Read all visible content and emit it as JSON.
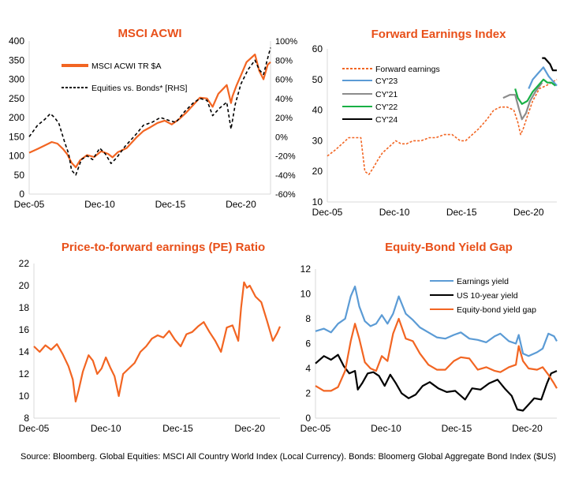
{
  "colors": {
    "title": "#e8501a",
    "orange": "#f26522",
    "blue": "#5b9bd5",
    "grey": "#8c8c8c",
    "green": "#18b045",
    "black": "#000000",
    "axis": "#d9d9d9"
  },
  "source_note": "Source: Bloomberg. Global Equities: MSCI All Country World Index (Local Currency).  Bonds: Bloomerg Global Aggregate Bond Index ($US)",
  "chart_data": [
    {
      "type": "line",
      "title": "MSCI ACWI",
      "xlabel": "",
      "ylabel": "",
      "y2label": "",
      "xlim": [
        2005.9,
        2023.0
      ],
      "ylim": [
        0,
        400
      ],
      "y2lim": [
        -60,
        100
      ],
      "x_tick_values": [
        2005.9,
        2010.9,
        2015.9,
        2020.9
      ],
      "x_tick_labels": [
        "Dec-05",
        "Dec-10",
        "Dec-15",
        "Dec-20"
      ],
      "y_tick_labels": [
        "0",
        "50",
        "100",
        "150",
        "200",
        "250",
        "300",
        "350",
        "400"
      ],
      "y2_tick_labels": [
        "-60%",
        "-40%",
        "-20%",
        "0%",
        "20%",
        "40%",
        "60%",
        "80%",
        "100%"
      ],
      "legend_position": "top-left",
      "series": [
        {
          "name": "MSCI ACWI TR $A",
          "axis": "left",
          "style": "solid",
          "color": "#f26522",
          "x": [
            2005.9,
            2006.5,
            2007.0,
            2007.5,
            2007.9,
            2008.3,
            2008.6,
            2008.9,
            2009.2,
            2009.5,
            2010.0,
            2010.5,
            2011.0,
            2011.5,
            2011.8,
            2012.2,
            2012.8,
            2013.5,
            2014.0,
            2014.5,
            2015.0,
            2015.5,
            2016.0,
            2016.5,
            2017.0,
            2017.5,
            2018.0,
            2018.5,
            2018.9,
            2019.3,
            2019.9,
            2020.2,
            2020.3,
            2020.6,
            2020.9,
            2021.3,
            2021.9,
            2022.2,
            2022.5,
            2022.8,
            2023.0
          ],
          "values": [
            108,
            118,
            127,
            136,
            132,
            118,
            104,
            82,
            70,
            88,
            102,
            97,
            112,
            105,
            96,
            110,
            120,
            148,
            165,
            175,
            186,
            192,
            182,
            195,
            212,
            232,
            252,
            250,
            228,
            262,
            285,
            238,
            255,
            285,
            310,
            345,
            365,
            322,
            300,
            338,
            345
          ]
        },
        {
          "name": "Equities vs. Bonds* [RHS]",
          "axis": "right",
          "style": "dashed",
          "color": "#000000",
          "x": [
            2005.9,
            2006.5,
            2007.0,
            2007.4,
            2007.7,
            2008.0,
            2008.4,
            2008.7,
            2008.9,
            2009.2,
            2009.6,
            2010.0,
            2010.4,
            2010.9,
            2011.3,
            2011.7,
            2012.1,
            2012.7,
            2013.5,
            2014.0,
            2014.6,
            2015.2,
            2015.8,
            2016.3,
            2016.9,
            2017.5,
            2018.0,
            2018.5,
            2018.9,
            2019.4,
            2019.9,
            2020.2,
            2020.5,
            2020.9,
            2021.4,
            2021.9,
            2022.2,
            2022.5,
            2022.8,
            2023.0
          ],
          "values": [
            0,
            12,
            18,
            24,
            20,
            14,
            -5,
            -18,
            -35,
            -40,
            -24,
            -20,
            -24,
            -12,
            -18,
            -28,
            -22,
            -10,
            3,
            12,
            15,
            20,
            17,
            15,
            26,
            35,
            40,
            38,
            22,
            30,
            36,
            8,
            34,
            55,
            70,
            80,
            70,
            65,
            82,
            93
          ]
        }
      ]
    },
    {
      "type": "line",
      "title": "Forward Earnings Index",
      "xlabel": "",
      "ylabel": "",
      "xlim": [
        2005.9,
        2023.0
      ],
      "ylim": [
        10,
        60
      ],
      "x_tick_values": [
        2005.9,
        2010.9,
        2015.9,
        2020.9
      ],
      "x_tick_labels": [
        "Dec-05",
        "Dec-10",
        "Dec-15",
        "Dec-20"
      ],
      "y_tick_labels": [
        "10",
        "20",
        "30",
        "40",
        "50",
        "60"
      ],
      "legend_position": "top-left",
      "series": [
        {
          "name": "Forward earnings",
          "style": "dashed",
          "color": "#f26522",
          "x": [
            2005.9,
            2006.5,
            2007.0,
            2007.5,
            2008.0,
            2008.4,
            2008.7,
            2009.0,
            2009.3,
            2009.7,
            2010.0,
            2010.5,
            2011.0,
            2011.4,
            2011.8,
            2012.3,
            2012.9,
            2013.5,
            2014.0,
            2014.6,
            2015.2,
            2015.8,
            2016.2,
            2016.7,
            2017.2,
            2017.8,
            2018.3,
            2018.8,
            2019.3,
            2019.8,
            2020.1,
            2020.3,
            2020.5,
            2020.8,
            2021.2,
            2021.7,
            2022.2,
            2022.6,
            2023.0
          ],
          "values": [
            25,
            27,
            29,
            31,
            31,
            31,
            20,
            19,
            21,
            24,
            26,
            28,
            30,
            29,
            29,
            30,
            30,
            31,
            31,
            32,
            32,
            30,
            30,
            32,
            34,
            37,
            40,
            41,
            41,
            40,
            36,
            32,
            34,
            38,
            43,
            47,
            48,
            49,
            50
          ]
        },
        {
          "name": "CY'23",
          "style": "solid",
          "color": "#5b9bd5",
          "x": [
            2020.9,
            2021.2,
            2021.6,
            2022.0,
            2022.4,
            2022.8,
            2023.0
          ],
          "values": [
            47,
            50,
            52,
            54,
            51,
            49,
            48
          ]
        },
        {
          "name": "CY'21",
          "style": "solid",
          "color": "#8c8c8c",
          "x": [
            2019.0,
            2019.5,
            2019.9,
            2020.2,
            2020.4,
            2020.7,
            2021.0,
            2021.4,
            2021.9
          ],
          "values": [
            44,
            45,
            45,
            40,
            37,
            39,
            43,
            46,
            49
          ]
        },
        {
          "name": "CY'22",
          "style": "solid",
          "color": "#18b045",
          "x": [
            2019.9,
            2020.1,
            2020.4,
            2020.8,
            2021.2,
            2021.6,
            2022.0,
            2022.3,
            2022.6,
            2022.9
          ],
          "values": [
            47,
            44,
            42,
            43,
            46,
            48,
            50,
            49,
            49,
            48
          ]
        },
        {
          "name": "CY'24",
          "style": "solid",
          "color": "#000000",
          "x": [
            2021.9,
            2022.1,
            2022.3,
            2022.5,
            2022.7,
            2023.0
          ],
          "values": [
            57,
            57,
            56,
            55,
            53,
            53
          ]
        }
      ]
    },
    {
      "type": "line",
      "title": "Price-to-forward earnings (PE) Ratio",
      "xlabel": "",
      "ylabel": "",
      "xlim": [
        2005.9,
        2023.0
      ],
      "ylim": [
        8,
        22
      ],
      "x_tick_values": [
        2005.9,
        2010.9,
        2015.9,
        2020.9
      ],
      "x_tick_labels": [
        "Dec-05",
        "Dec-10",
        "Dec-15",
        "Dec-20"
      ],
      "y_tick_labels": [
        "8",
        "10",
        "12",
        "14",
        "16",
        "18",
        "20",
        "22"
      ],
      "series": [
        {
          "name": "",
          "style": "solid",
          "color": "#f26522",
          "x": [
            2005.9,
            2006.3,
            2006.7,
            2007.1,
            2007.5,
            2007.9,
            2008.3,
            2008.6,
            2008.8,
            2009.0,
            2009.3,
            2009.7,
            2010.0,
            2010.3,
            2010.6,
            2010.9,
            2011.2,
            2011.5,
            2011.8,
            2012.1,
            2012.5,
            2012.9,
            2013.3,
            2013.7,
            2014.1,
            2014.5,
            2014.9,
            2015.3,
            2015.7,
            2016.1,
            2016.5,
            2016.9,
            2017.3,
            2017.7,
            2018.1,
            2018.5,
            2018.9,
            2019.3,
            2019.7,
            2020.1,
            2020.3,
            2020.5,
            2020.7,
            2020.9,
            2021.3,
            2021.7,
            2022.1,
            2022.5,
            2022.8,
            2023.0
          ],
          "values": [
            14.5,
            14.0,
            14.6,
            14.2,
            14.7,
            13.8,
            12.7,
            11.5,
            9.5,
            10.5,
            12.2,
            13.7,
            13.2,
            12.0,
            12.5,
            13.5,
            12.6,
            11.8,
            10.0,
            12.0,
            12.5,
            13.0,
            14.0,
            14.5,
            15.2,
            15.5,
            15.3,
            15.9,
            15.1,
            14.5,
            15.6,
            15.8,
            16.3,
            16.7,
            15.8,
            15.0,
            14.0,
            16.2,
            16.4,
            15.0,
            18.0,
            20.3,
            19.8,
            20.0,
            19.0,
            18.5,
            16.8,
            15.0,
            15.7,
            16.3
          ]
        }
      ]
    },
    {
      "type": "line",
      "title": "Equity-Bond Yield Gap",
      "xlabel": "",
      "ylabel": "",
      "xlim": [
        2005.9,
        2023.0
      ],
      "ylim": [
        0,
        12
      ],
      "x_tick_values": [
        2005.9,
        2010.9,
        2015.9,
        2020.9
      ],
      "x_tick_labels": [
        "Dec-05",
        "Dec-10",
        "Dec-15",
        "Dec-20"
      ],
      "y_tick_labels": [
        "0",
        "2",
        "4",
        "6",
        "8",
        "10",
        "12"
      ],
      "legend_position": "top-right",
      "series": [
        {
          "name": "Earnings yield",
          "style": "solid",
          "color": "#5b9bd5",
          "x": [
            2005.9,
            2006.5,
            2007.0,
            2007.5,
            2008.0,
            2008.4,
            2008.7,
            2009.0,
            2009.4,
            2009.8,
            2010.2,
            2010.6,
            2011.0,
            2011.4,
            2011.8,
            2012.3,
            2012.8,
            2013.3,
            2013.9,
            2014.5,
            2015.1,
            2015.7,
            2016.2,
            2016.8,
            2017.4,
            2018.0,
            2018.6,
            2019.0,
            2019.6,
            2020.1,
            2020.3,
            2020.6,
            2021.0,
            2021.6,
            2022.0,
            2022.4,
            2022.8,
            2023.0
          ],
          "values": [
            7.0,
            7.2,
            6.9,
            7.6,
            8.0,
            9.8,
            10.6,
            9.0,
            7.8,
            7.4,
            7.6,
            8.3,
            7.6,
            8.4,
            9.8,
            8.4,
            7.9,
            7.3,
            6.9,
            6.5,
            6.4,
            6.7,
            6.9,
            6.4,
            6.3,
            6.1,
            6.6,
            6.8,
            6.2,
            6.0,
            6.7,
            5.2,
            5.0,
            5.3,
            5.6,
            6.8,
            6.6,
            6.2
          ]
        },
        {
          "name": "US 10-year yield",
          "style": "solid",
          "color": "#000000",
          "x": [
            2005.9,
            2006.5,
            2007.0,
            2007.5,
            2007.9,
            2008.3,
            2008.7,
            2008.9,
            2009.2,
            2009.6,
            2010.0,
            2010.4,
            2010.8,
            2011.2,
            2011.6,
            2012.0,
            2012.5,
            2013.0,
            2013.5,
            2014.0,
            2014.6,
            2015.2,
            2015.8,
            2016.5,
            2017.0,
            2017.6,
            2018.2,
            2018.8,
            2019.3,
            2019.8,
            2020.2,
            2020.6,
            2021.0,
            2021.4,
            2021.9,
            2022.3,
            2022.6,
            2023.0
          ],
          "values": [
            4.4,
            5.0,
            4.7,
            5.1,
            4.2,
            3.6,
            3.8,
            2.3,
            2.8,
            3.6,
            3.7,
            3.4,
            2.6,
            3.5,
            2.8,
            2.0,
            1.6,
            1.9,
            2.6,
            2.9,
            2.4,
            2.1,
            2.2,
            1.5,
            2.4,
            2.3,
            2.8,
            3.1,
            2.4,
            1.8,
            0.7,
            0.6,
            1.1,
            1.6,
            1.5,
            2.8,
            3.6,
            3.8
          ]
        },
        {
          "name": "Equity-bond yield gap",
          "style": "solid",
          "color": "#f26522",
          "x": [
            2005.9,
            2006.5,
            2007.0,
            2007.5,
            2008.0,
            2008.4,
            2008.7,
            2009.0,
            2009.4,
            2009.8,
            2010.2,
            2010.6,
            2011.0,
            2011.4,
            2011.8,
            2012.3,
            2012.8,
            2013.3,
            2013.9,
            2014.5,
            2015.1,
            2015.7,
            2016.2,
            2016.8,
            2017.4,
            2018.0,
            2018.6,
            2019.0,
            2019.6,
            2020.1,
            2020.3,
            2020.6,
            2021.0,
            2021.6,
            2022.0,
            2022.4,
            2022.8,
            2023.0
          ],
          "values": [
            2.6,
            2.2,
            2.2,
            2.5,
            3.8,
            6.2,
            7.6,
            6.4,
            4.5,
            4.0,
            3.8,
            5.0,
            4.6,
            6.8,
            8.0,
            6.4,
            6.2,
            5.2,
            4.3,
            3.9,
            3.9,
            4.6,
            4.9,
            4.8,
            3.9,
            4.1,
            3.8,
            3.7,
            4.1,
            4.3,
            5.8,
            4.6,
            4.0,
            3.9,
            4.1,
            3.5,
            2.8,
            2.4
          ]
        }
      ]
    }
  ]
}
